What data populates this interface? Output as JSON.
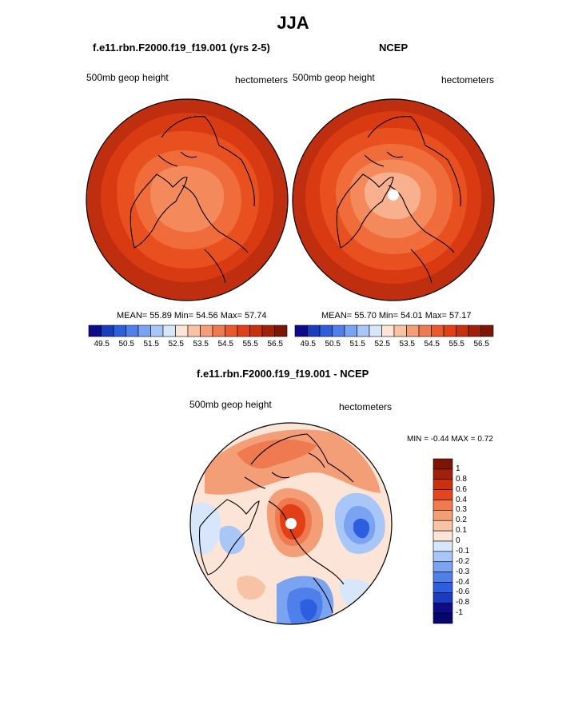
{
  "page_title": "JJA",
  "panels": [
    {
      "title": "f.e11.rbn.F2000.f19_f19.001 (yrs 2-5)",
      "left_label": "500mb geop height",
      "right_label": "hectometers",
      "stats": {
        "mean": "55.89",
        "min": "54.56",
        "max": "57.74"
      }
    },
    {
      "title": "NCEP",
      "left_label": "500mb geop height",
      "right_label": "hectometers",
      "stats": {
        "mean": "55.70",
        "min": "54.01",
        "max": "57.17"
      }
    },
    {
      "title": "f.e11.rbn.F2000.f19_f19.001 - NCEP",
      "left_label": "500mb geop height",
      "right_label": "hectometers",
      "minmax_text": "MIN =  -0.44 MAX =   0.72"
    }
  ],
  "labels": {
    "mean": "MEAN=",
    "min": "Min=",
    "max": "Max="
  },
  "colorbar_abs": {
    "ticks": [
      "49.5",
      "50.5",
      "51.5",
      "52.5",
      "53.5",
      "54.5",
      "55.5",
      "56.5"
    ],
    "colors": [
      "#0c0c8a",
      "#1a3dc0",
      "#2e5ee0",
      "#4f80ea",
      "#7aa4f2",
      "#a8c6f7",
      "#d8e6fb",
      "#fce5d6",
      "#f8c3a4",
      "#f49e78",
      "#f07a4f",
      "#ec582e",
      "#e23f16",
      "#c9300c",
      "#a22008",
      "#7d1504"
    ]
  },
  "colorbar_diff": {
    "ticks": [
      "1",
      "0.8",
      "0.6",
      "0.4",
      "0.3",
      "0.2",
      "0.1",
      "0",
      "-0.1",
      "-0.2",
      "-0.3",
      "-0.4",
      "-0.6",
      "-0.8",
      "-1"
    ],
    "colors": [
      "#7d1504",
      "#a22008",
      "#c9300c",
      "#e6451b",
      "#f07a4f",
      "#f49e78",
      "#f8c3a4",
      "#fce5d6",
      "#d8e6fb",
      "#a8c6f7",
      "#7aa4f2",
      "#4f80ea",
      "#2e5ee0",
      "#1a3dc0",
      "#0c0c8a",
      "#06066b"
    ]
  },
  "colors": {
    "land_outline": "#000000",
    "pole_marker": "#ffffff"
  }
}
